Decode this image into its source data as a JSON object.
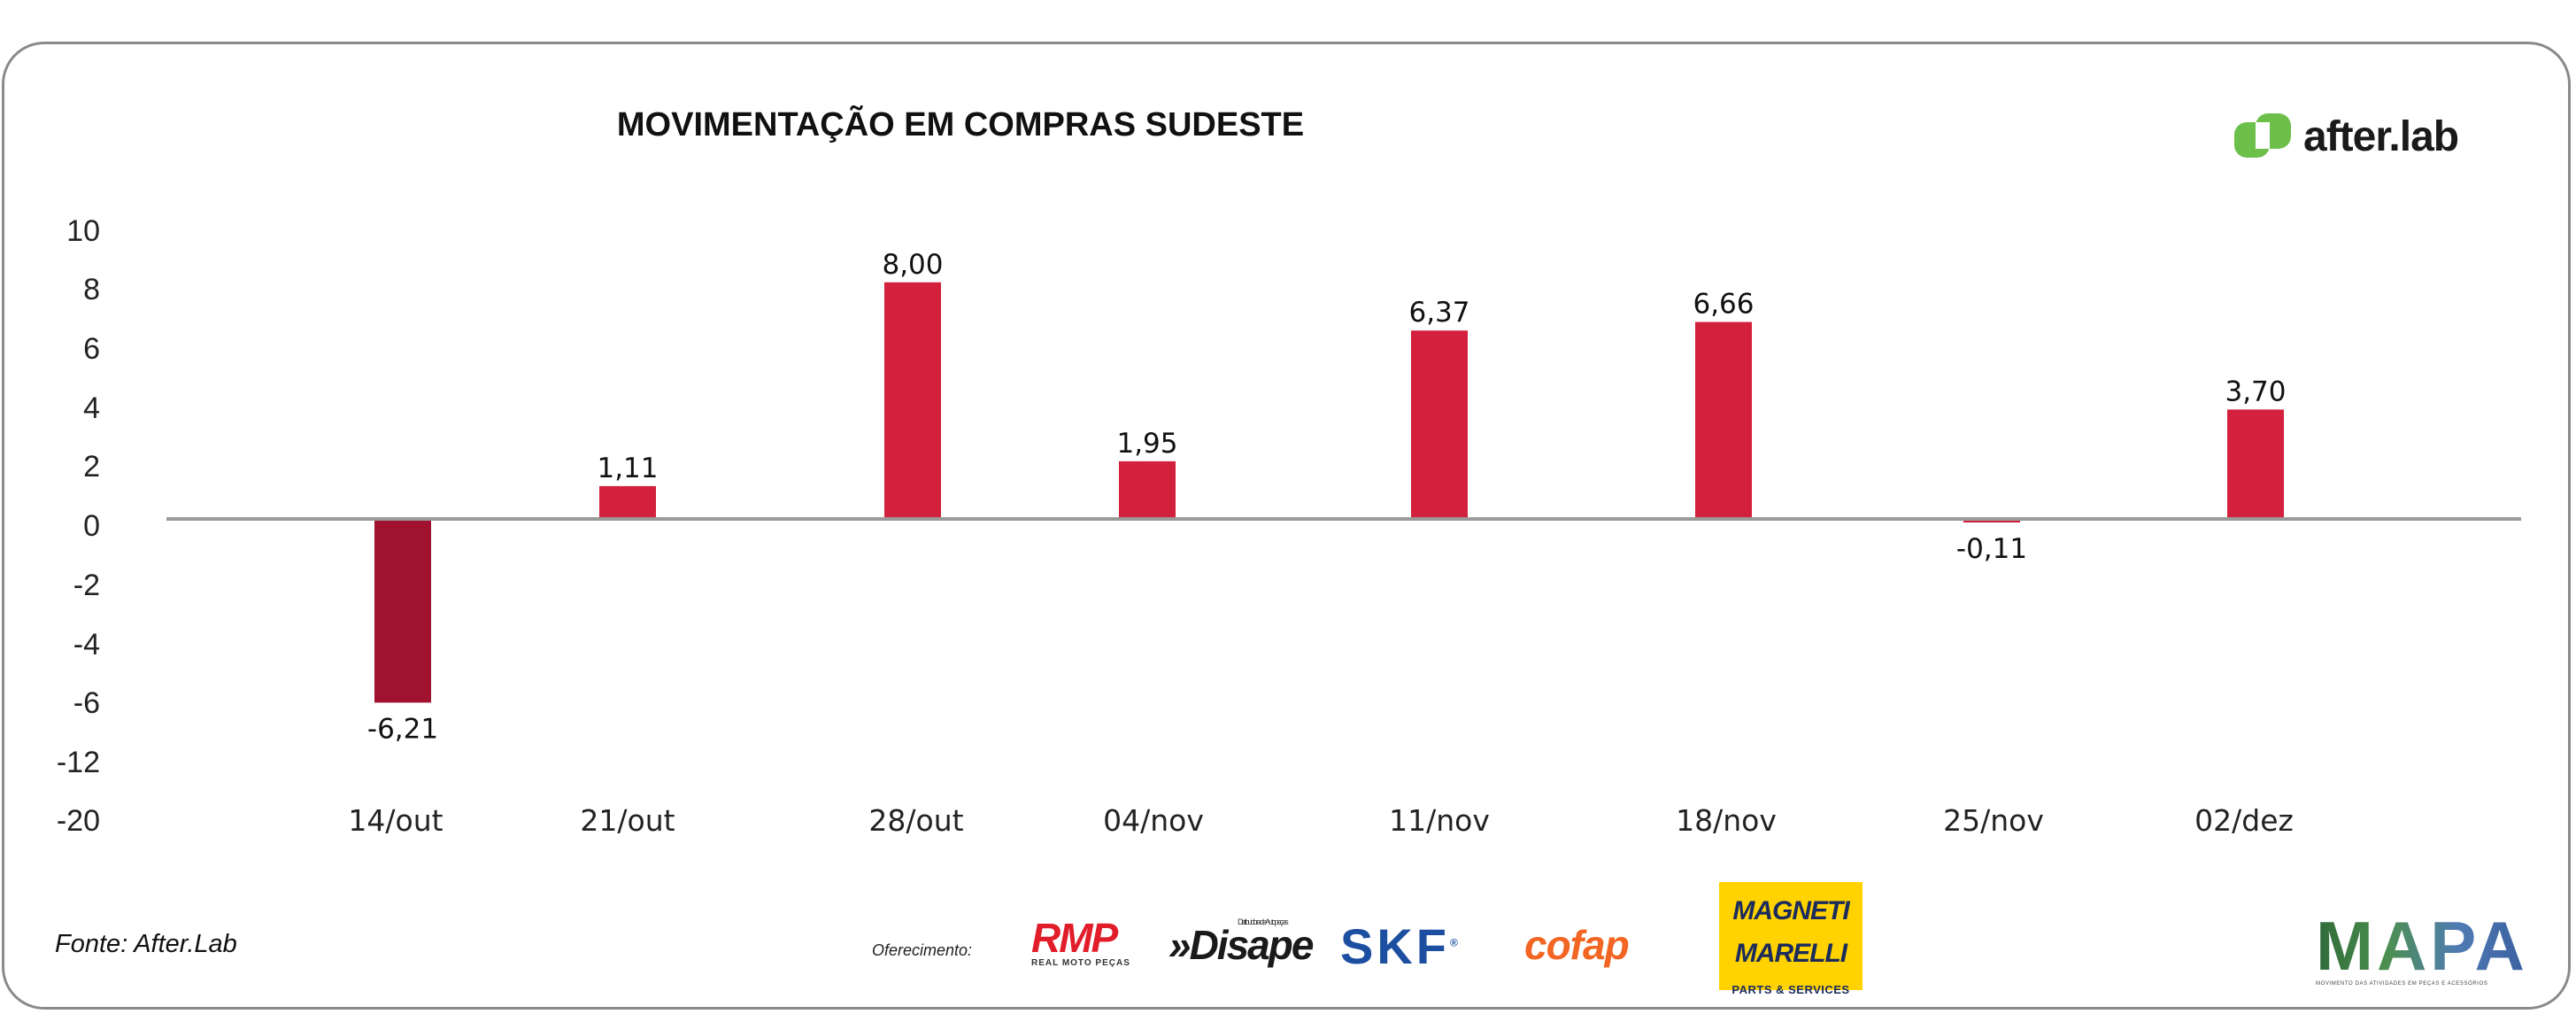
{
  "title": "MOVIMENTAÇÃO EM COMPRAS SUDESTE",
  "source": "Fonte: After.Lab",
  "sponsor_label": "Oferecimento:",
  "logo": {
    "text": "after.lab",
    "color": "#6cc04a"
  },
  "sponsors": {
    "rmp": "RMP",
    "rmp_sub": "REAL MOTO PEÇAS",
    "disape": "»Disape",
    "disape_sub": "Distribuidora de Autopeças",
    "skf": "SKF",
    "skf_reg": "®",
    "cofap": "cofap",
    "magneti_1": "MAGNETI",
    "magneti_2": "MARELLI",
    "magneti_3": "PARTS & SERVICES"
  },
  "mapa": {
    "text": "MAPA",
    "subtitle": "MOVIMENTO DAS ATIVIDADES EM PEÇAS E ACESSÓRIOS"
  },
  "chart_data": {
    "type": "bar",
    "title": "MOVIMENTAÇÃO EM COMPRAS SUDESTE",
    "categories": [
      "14/out",
      "21/out",
      "28/out",
      "04/nov",
      "11/nov",
      "18/nov",
      "25/nov",
      "02/dez"
    ],
    "values": [
      -6.21,
      1.11,
      8.0,
      1.95,
      6.37,
      6.66,
      -0.11,
      3.7
    ],
    "value_labels": [
      "-6,21",
      "1,11",
      "8,00",
      "1,95",
      "6,37",
      "6,66",
      "-0,11",
      "3,70"
    ],
    "y_ticks": [
      "10",
      "8",
      "6",
      "4",
      "2",
      "0",
      "-2",
      "-4",
      "-6",
      "-12",
      "-20"
    ],
    "grid": false,
    "legend": "none",
    "colors": {
      "positive": "#d3203d",
      "negative": "#a0122f",
      "axis": "#9a9a9a"
    }
  }
}
